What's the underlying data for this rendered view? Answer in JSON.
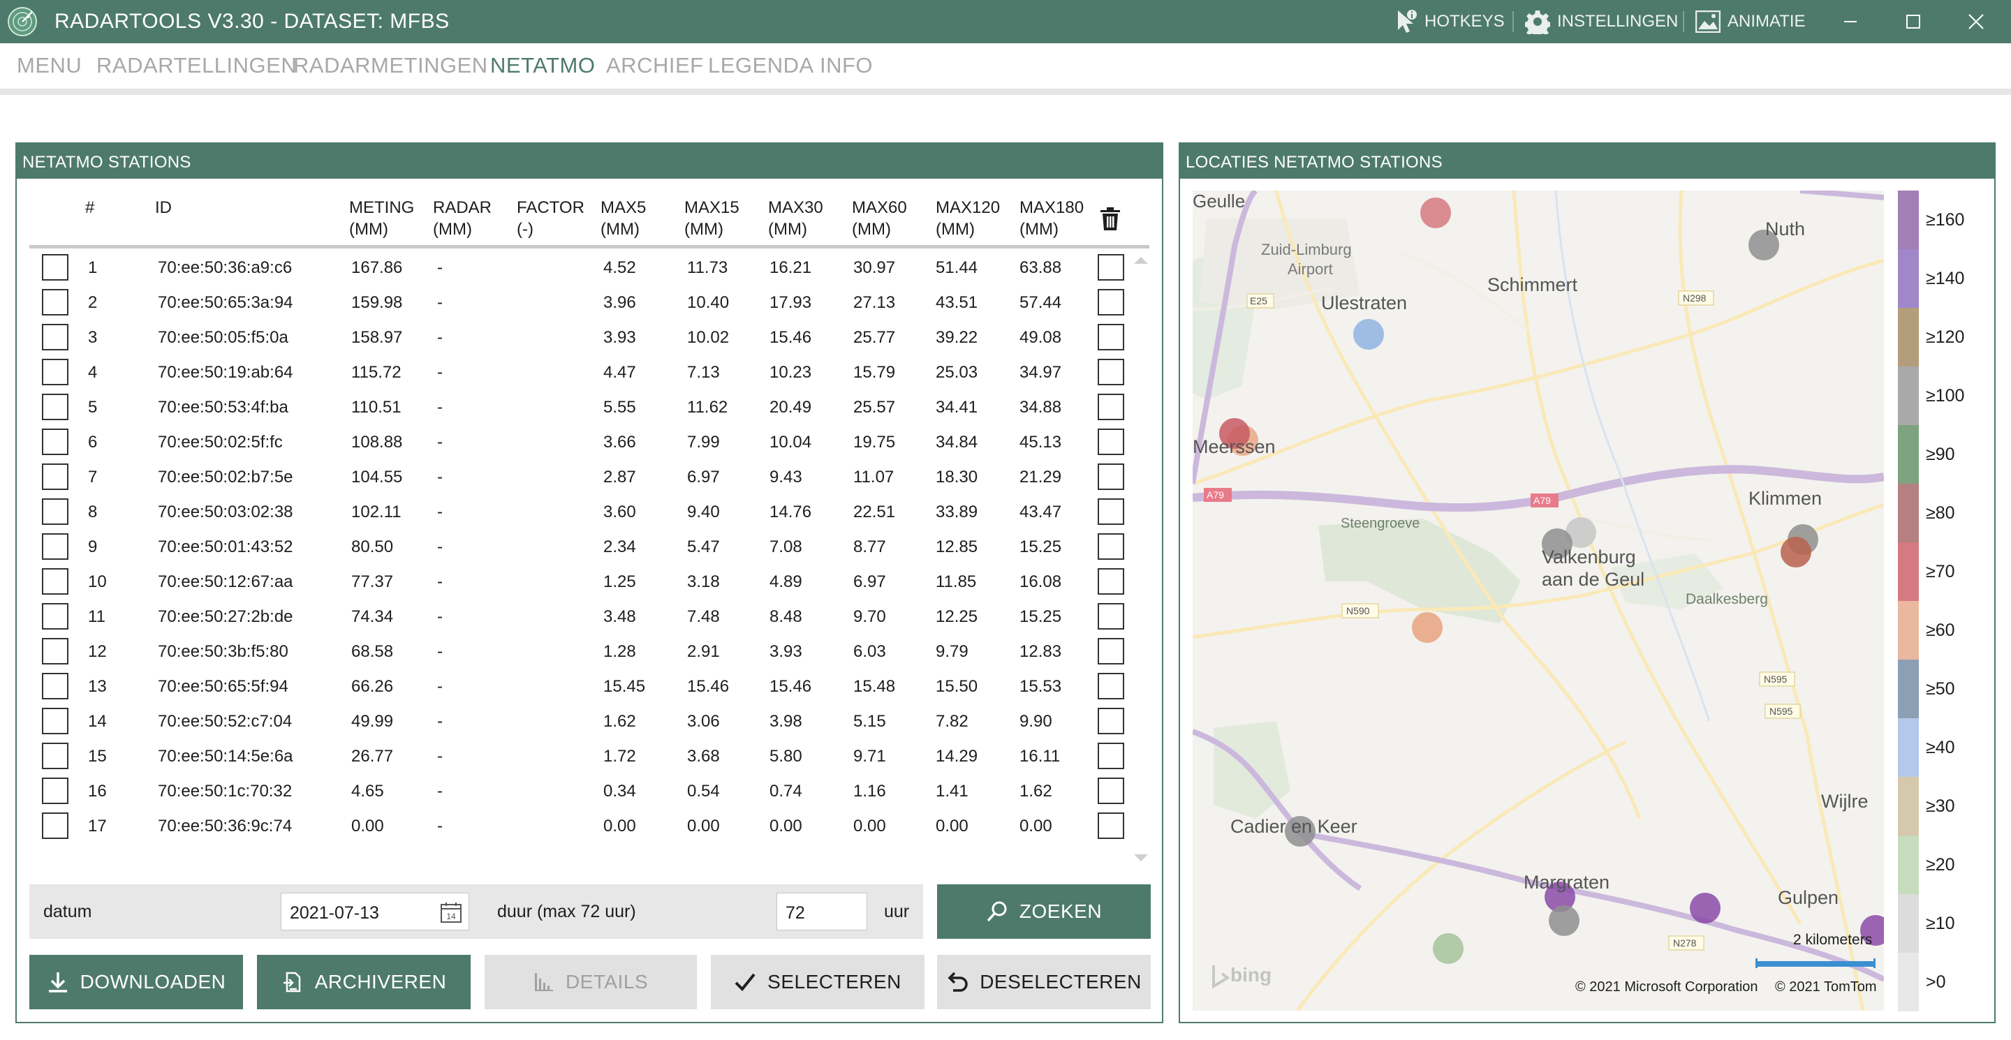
{
  "app": {
    "title": "RADARTOOLS V3.30 - DATASET: MFBS",
    "hotkeys": "HOTKEYS",
    "settings": "INSTELLINGEN",
    "animation": "ANIMATIE"
  },
  "menu": [
    "MENU",
    "RADARTELLINGEN",
    "RADARMETINGEN",
    "NETATMO",
    "ARCHIEF",
    "LEGENDA",
    "INFO"
  ],
  "menu_active": "NETATMO",
  "left_panel": {
    "title": "NETATMO STATIONS",
    "columns": [
      {
        "l1": "#",
        "l2": ""
      },
      {
        "l1": "ID",
        "l2": ""
      },
      {
        "l1": "METING",
        "l2": "(MM)"
      },
      {
        "l1": "RADAR",
        "l2": "(MM)"
      },
      {
        "l1": "FACTOR",
        "l2": "(-)"
      },
      {
        "l1": "MAX5",
        "l2": "(MM)"
      },
      {
        "l1": "MAX15",
        "l2": "(MM)"
      },
      {
        "l1": "MAX30",
        "l2": "(MM)"
      },
      {
        "l1": "MAX60",
        "l2": "(MM)"
      },
      {
        "l1": "MAX120",
        "l2": "(MM)"
      },
      {
        "l1": "MAX180",
        "l2": "(MM)"
      }
    ],
    "rows": [
      [
        "1",
        "70:ee:50:36:a9:c6",
        "167.86",
        "-",
        "",
        "4.52",
        "11.73",
        "16.21",
        "30.97",
        "51.44",
        "63.88"
      ],
      [
        "2",
        "70:ee:50:65:3a:94",
        "159.98",
        "-",
        "",
        "3.96",
        "10.40",
        "17.93",
        "27.13",
        "43.51",
        "57.44"
      ],
      [
        "3",
        "70:ee:50:05:f5:0a",
        "158.97",
        "-",
        "",
        "3.93",
        "10.02",
        "15.46",
        "25.77",
        "39.22",
        "49.08"
      ],
      [
        "4",
        "70:ee:50:19:ab:64",
        "115.72",
        "-",
        "",
        "4.47",
        "7.13",
        "10.23",
        "15.79",
        "25.03",
        "34.97"
      ],
      [
        "5",
        "70:ee:50:53:4f:ba",
        "110.51",
        "-",
        "",
        "5.55",
        "11.62",
        "20.49",
        "25.57",
        "34.41",
        "34.88"
      ],
      [
        "6",
        "70:ee:50:02:5f:fc",
        "108.88",
        "-",
        "",
        "3.66",
        "7.99",
        "10.04",
        "19.75",
        "34.84",
        "45.13"
      ],
      [
        "7",
        "70:ee:50:02:b7:5e",
        "104.55",
        "-",
        "",
        "2.87",
        "6.97",
        "9.43",
        "11.07",
        "18.30",
        "21.29"
      ],
      [
        "8",
        "70:ee:50:03:02:38",
        "102.11",
        "-",
        "",
        "3.60",
        "9.40",
        "14.76",
        "22.51",
        "33.89",
        "43.47"
      ],
      [
        "9",
        "70:ee:50:01:43:52",
        "80.50",
        "-",
        "",
        "2.34",
        "5.47",
        "7.08",
        "8.77",
        "12.85",
        "15.25"
      ],
      [
        "10",
        "70:ee:50:12:67:aa",
        "77.37",
        "-",
        "",
        "1.25",
        "3.18",
        "4.89",
        "6.97",
        "11.85",
        "16.08"
      ],
      [
        "11",
        "70:ee:50:27:2b:de",
        "74.34",
        "-",
        "",
        "3.48",
        "7.48",
        "8.48",
        "9.70",
        "12.25",
        "15.25"
      ],
      [
        "12",
        "70:ee:50:3b:f5:80",
        "68.58",
        "-",
        "",
        "1.28",
        "2.91",
        "3.93",
        "6.03",
        "9.79",
        "12.83"
      ],
      [
        "13",
        "70:ee:50:65:5f:94",
        "66.26",
        "-",
        "",
        "15.45",
        "15.46",
        "15.46",
        "15.48",
        "15.50",
        "15.53"
      ],
      [
        "14",
        "70:ee:50:52:c7:04",
        "49.99",
        "-",
        "",
        "1.62",
        "3.06",
        "3.98",
        "5.15",
        "7.82",
        "9.90"
      ],
      [
        "15",
        "70:ee:50:14:5e:6a",
        "26.77",
        "-",
        "",
        "1.72",
        "3.68",
        "5.80",
        "9.71",
        "14.29",
        "16.11"
      ],
      [
        "16",
        "70:ee:50:1c:70:32",
        "4.65",
        "-",
        "",
        "0.34",
        "0.54",
        "0.74",
        "1.16",
        "1.41",
        "1.62"
      ],
      [
        "17",
        "70:ee:50:36:9c:74",
        "0.00",
        "-",
        "",
        "0.00",
        "0.00",
        "0.00",
        "0.00",
        "0.00",
        "0.00"
      ]
    ]
  },
  "search": {
    "date_label": "datum",
    "date_value": "2021-07-13",
    "duration_label": "duur (max 72 uur)",
    "duration_value": "72",
    "duration_unit": "uur",
    "search_button": "ZOEKEN"
  },
  "actions": {
    "download": "DOWNLOADEN",
    "archive": "ARCHIVEREN",
    "details": "DETAILS",
    "select": "SELECTEREN",
    "deselect": "DESELECTEREN"
  },
  "right_panel": {
    "title": "LOCATIES NETATMO STATIONS",
    "places": [
      "Geulle",
      "Zuid-Limburg",
      "Airport",
      "Schimmert",
      "Nuth",
      "Ulestraten",
      "Meerssen",
      "Steengroeve",
      "Klimmen",
      "Valkenburg",
      "aan de Geul",
      "Daalkesberg",
      "Cadier en Keer",
      "Margraten",
      "Wijlre",
      "Gulpen"
    ],
    "roads": [
      "E25",
      "N298",
      "A79",
      "A79",
      "N590",
      "N595",
      "N595",
      "N278"
    ],
    "scale": "2 kilometers",
    "bing": "bing",
    "copyright_ms": "© 2021 Microsoft Corporation",
    "copyright_tt": "© 2021 TomTom",
    "colors": {
      "accent": "#4e7a6c"
    }
  },
  "legend": [
    {
      "label": "≥160",
      "color": "#a27fb5"
    },
    {
      "label": "≥140",
      "color": "#9f87c9"
    },
    {
      "label": "≥120",
      "color": "#b49d7a"
    },
    {
      "label": "≥100",
      "color": "#a9a9a9"
    },
    {
      "label": "≥90",
      "color": "#7ea37f"
    },
    {
      "label": "≥80",
      "color": "#b48080"
    },
    {
      "label": "≥70",
      "color": "#d57a80"
    },
    {
      "label": "≥60",
      "color": "#e9b89e"
    },
    {
      "label": "≥50",
      "color": "#8d9fb4"
    },
    {
      "label": "≥40",
      "color": "#b3c8ea"
    },
    {
      "label": "≥30",
      "color": "#d6c8ab"
    },
    {
      "label": "≥20",
      "color": "#c6dcbd"
    },
    {
      "label": "≥10",
      "color": "#dcdcdc"
    },
    {
      "label": ">0",
      "color": "#e8e8e8"
    }
  ]
}
